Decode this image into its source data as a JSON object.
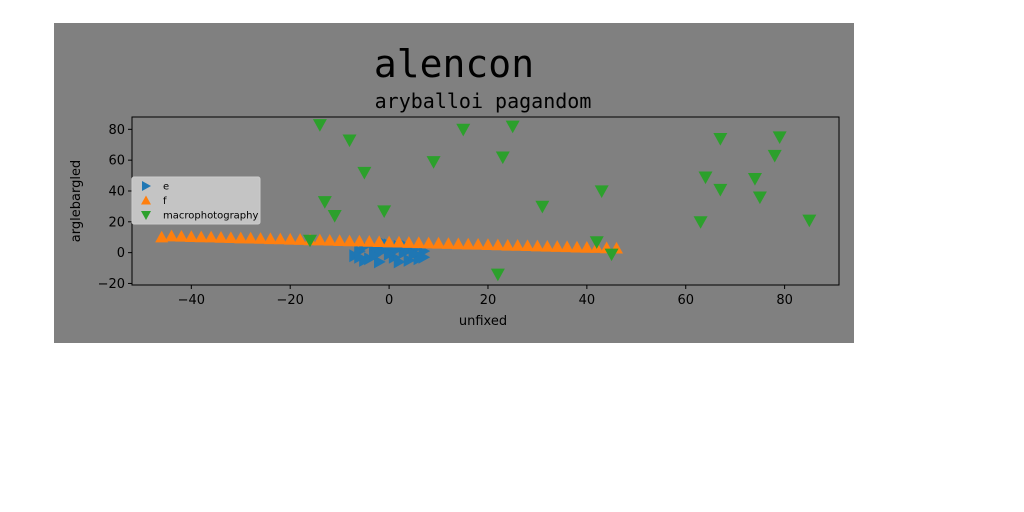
{
  "chart_data": {
    "type": "scatter",
    "suptitle": "alencon",
    "title": "aryballoi pagandom",
    "xlabel": "unfixed",
    "ylabel": "arglebargled",
    "xlim": [
      -52,
      91
    ],
    "ylim": [
      -21,
      88
    ],
    "xticks": [
      -40,
      -20,
      0,
      20,
      40,
      60,
      80
    ],
    "yticks": [
      -20,
      0,
      20,
      40,
      60,
      80
    ],
    "grid": false,
    "legend_position": "center-left",
    "series": [
      {
        "name": "e",
        "marker": "triangle-right",
        "color": "#1f77b4",
        "points": [
          [
            -7,
            -2
          ],
          [
            -6,
            1
          ],
          [
            -5,
            4
          ],
          [
            -4,
            -4
          ],
          [
            -3,
            3
          ],
          [
            -2,
            -6
          ],
          [
            -1,
            2
          ],
          [
            0,
            5
          ],
          [
            1,
            -3
          ],
          [
            2,
            4
          ],
          [
            3,
            0
          ],
          [
            4,
            -5
          ],
          [
            5,
            2
          ],
          [
            6,
            -2
          ],
          [
            7,
            1
          ],
          [
            -5,
            -5
          ],
          [
            -2,
            0
          ],
          [
            1,
            1
          ],
          [
            4,
            3
          ],
          [
            6,
            -4
          ],
          [
            -6,
            -3
          ],
          [
            0,
            -1
          ],
          [
            3,
            5
          ],
          [
            -3,
            -2
          ],
          [
            2,
            -6
          ],
          [
            5,
            -1
          ],
          [
            -1,
            6
          ],
          [
            7,
            -3
          ]
        ]
      },
      {
        "name": "f",
        "marker": "triangle-up",
        "color": "#ff7f0e",
        "points": [
          [
            -46,
            10
          ],
          [
            -44,
            10.7
          ],
          [
            -42,
            10.5
          ],
          [
            -40,
            10.3
          ],
          [
            -38,
            10.1
          ],
          [
            -36,
            10
          ],
          [
            -34,
            9.8
          ],
          [
            -32,
            9.6
          ],
          [
            -30,
            9.4
          ],
          [
            -28,
            9.3
          ],
          [
            -26,
            9.1
          ],
          [
            -24,
            8.9
          ],
          [
            -22,
            8.8
          ],
          [
            -20,
            8.6
          ],
          [
            -18,
            8.4
          ],
          [
            -16,
            8.2
          ],
          [
            -14,
            8.1
          ],
          [
            -12,
            7.9
          ],
          [
            -10,
            7.7
          ],
          [
            -8,
            7.5
          ],
          [
            -6,
            7.4
          ],
          [
            -4,
            7.2
          ],
          [
            -2,
            7
          ],
          [
            0,
            6.8
          ],
          [
            2,
            6.7
          ],
          [
            4,
            6.5
          ],
          [
            6,
            6.3
          ],
          [
            8,
            6.1
          ],
          [
            10,
            6
          ],
          [
            12,
            5.8
          ],
          [
            14,
            5.6
          ],
          [
            16,
            5.4
          ],
          [
            18,
            5.3
          ],
          [
            20,
            5.1
          ],
          [
            22,
            4.9
          ],
          [
            24,
            4.7
          ],
          [
            26,
            4.6
          ],
          [
            28,
            4.4
          ],
          [
            30,
            4.2
          ],
          [
            32,
            4
          ],
          [
            34,
            3.9
          ],
          [
            36,
            3.7
          ],
          [
            38,
            3.5
          ],
          [
            40,
            3.3
          ],
          [
            42,
            3.2
          ],
          [
            44,
            3
          ],
          [
            46,
            2.8
          ]
        ]
      },
      {
        "name": "macrophotography",
        "marker": "triangle-down",
        "color": "#2ca02c",
        "points": [
          [
            -14,
            83
          ],
          [
            -8,
            73
          ],
          [
            -13,
            33
          ],
          [
            -11,
            24
          ],
          [
            -5,
            52
          ],
          [
            -16,
            8
          ],
          [
            -1,
            27
          ],
          [
            9,
            59
          ],
          [
            15,
            80
          ],
          [
            25,
            82
          ],
          [
            23,
            62
          ],
          [
            31,
            30
          ],
          [
            22,
            -14
          ],
          [
            42,
            7
          ],
          [
            43,
            40
          ],
          [
            45,
            -1
          ],
          [
            63,
            20
          ],
          [
            64,
            49
          ],
          [
            67,
            41
          ],
          [
            67,
            74
          ],
          [
            74,
            48
          ],
          [
            75,
            36
          ],
          [
            78,
            63
          ],
          [
            79,
            75
          ],
          [
            85,
            21
          ]
        ]
      }
    ]
  }
}
